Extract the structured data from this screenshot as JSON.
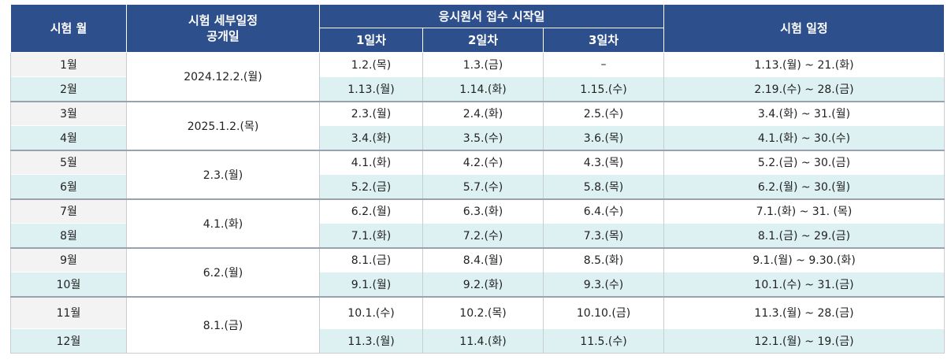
{
  "header": {
    "month": "시험 월",
    "release": [
      "시험 세부일정",
      "공개일"
    ],
    "application_start": "응시원서 접수 시작일",
    "day1": "1일차",
    "day2": "2일차",
    "day3": "3일차",
    "schedule": "시험 일정"
  },
  "groups": [
    {
      "release": "2024.12.2.(월)",
      "rows": [
        {
          "month": "1월",
          "d1": "1.2.(목)",
          "d2": "1.3.(금)",
          "d3": "–",
          "exam": "1.13.(월) ~ 21.(화)"
        },
        {
          "month": "2월",
          "d1": "1.13.(월)",
          "d2": "1.14.(화)",
          "d3": "1.15.(수)",
          "exam": "2.19.(수) ~ 28.(금)"
        }
      ]
    },
    {
      "release": "2025.1.2.(목)",
      "rows": [
        {
          "month": "3월",
          "d1": "2.3.(월)",
          "d2": "2.4.(화)",
          "d3": "2.5.(수)",
          "exam": "3.4.(화) ~ 31.(월)"
        },
        {
          "month": "4월",
          "d1": "3.4.(화)",
          "d2": "3.5.(수)",
          "d3": "3.6.(목)",
          "exam": "4.1.(화) ~ 30.(수)"
        }
      ]
    },
    {
      "release": "2.3.(월)",
      "rows": [
        {
          "month": "5월",
          "d1": "4.1.(화)",
          "d2": "4.2.(수)",
          "d3": "4.3.(목)",
          "exam": "5.2.(금) ~ 30.(금)"
        },
        {
          "month": "6월",
          "d1": "5.2.(금)",
          "d2": "5.7.(수)",
          "d3": "5.8.(목)",
          "exam": "6.2.(월) ~ 30.(월)"
        }
      ]
    },
    {
      "release": "4.1.(화)",
      "rows": [
        {
          "month": "7월",
          "d1": "6.2.(월)",
          "d2": "6.3.(화)",
          "d3": "6.4.(수)",
          "exam": "7.1.(화) ~ 31. (목)"
        },
        {
          "month": "8월",
          "d1": "7.1.(화)",
          "d2": "7.2.(수)",
          "d3": "7.3.(목)",
          "exam": "8.1.(금) ~ 29.(금)"
        }
      ]
    },
    {
      "release": "6.2.(월)",
      "rows": [
        {
          "month": "9월",
          "d1": "8.1.(금)",
          "d2": "8.4.(월)",
          "d3": "8.5.(화)",
          "exam": "9.1.(월) ~ 9.30.(화)"
        },
        {
          "month": "10월",
          "d1": "9.1.(월)",
          "d2": "9.2.(화)",
          "d3": "9.3.(수)",
          "exam": "10.1.(수) ~ 31.(금)"
        }
      ]
    },
    {
      "release": "8.1.(금)",
      "rows": [
        {
          "month": "11월",
          "d1": "10.1.(수)",
          "d2": "10.2.(목)",
          "d3": "10.10.(금)",
          "exam": "11.3.(월) ~ 28.(금)"
        },
        {
          "month": "12월",
          "d1": "11.3.(월)",
          "d2": "11.4.(화)",
          "d3": "11.5.(수)",
          "exam": "12.1.(월) ~ 19.(금)"
        }
      ]
    }
  ]
}
